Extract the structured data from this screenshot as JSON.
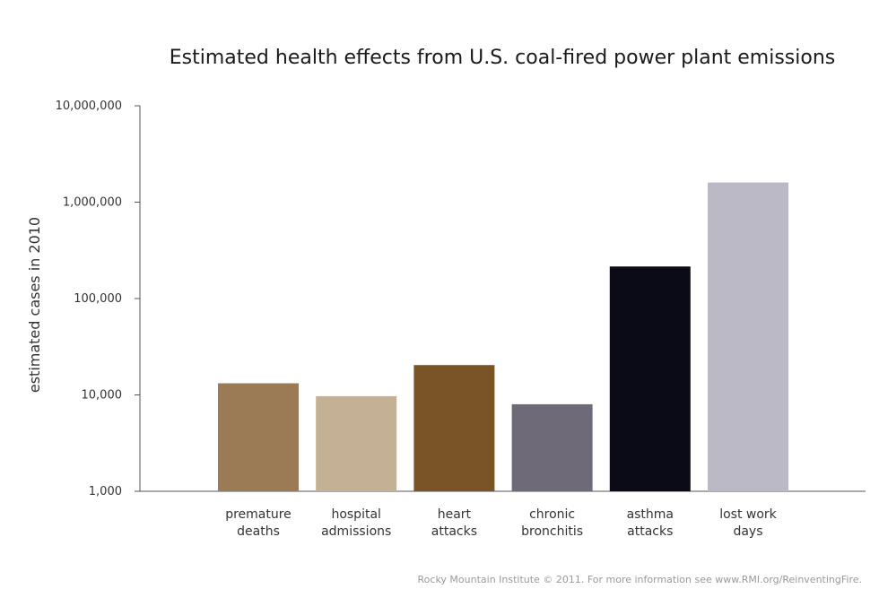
{
  "chart_data": {
    "type": "bar",
    "title": "Estimated health effects from U.S. coal-fired power plant emissions",
    "xlabel": "",
    "ylabel": "estimated cases in 2010",
    "yscale": "log",
    "ylim": [
      1000,
      10000000
    ],
    "yticks": [
      {
        "value": 1000,
        "label": "1,000"
      },
      {
        "value": 10000,
        "label": "10,000"
      },
      {
        "value": 100000,
        "label": "100,000"
      },
      {
        "value": 1000000,
        "label": "1,000,000"
      },
      {
        "value": 10000000,
        "label": "10,000,000"
      }
    ],
    "categories": [
      {
        "line1": "premature",
        "line2": "deaths"
      },
      {
        "line1": "hospital",
        "line2": "admissions"
      },
      {
        "line1": "heart",
        "line2": "attacks"
      },
      {
        "line1": "chronic",
        "line2": "bronchitis"
      },
      {
        "line1": "asthma",
        "line2": "attacks"
      },
      {
        "line1": "lost work",
        "line2": "days"
      }
    ],
    "values": [
      13200,
      9700,
      20400,
      8000,
      215000,
      1600000
    ],
    "colors": [
      "#9a7b55",
      "#c4b094",
      "#7a5426",
      "#6e6a78",
      "#0b0b18",
      "#bcb9c6"
    ],
    "grid": false,
    "legend": "none"
  },
  "credit": "Rocky Mountain Institute © 2011. For more information see www.RMI.org/ReinventingFire."
}
